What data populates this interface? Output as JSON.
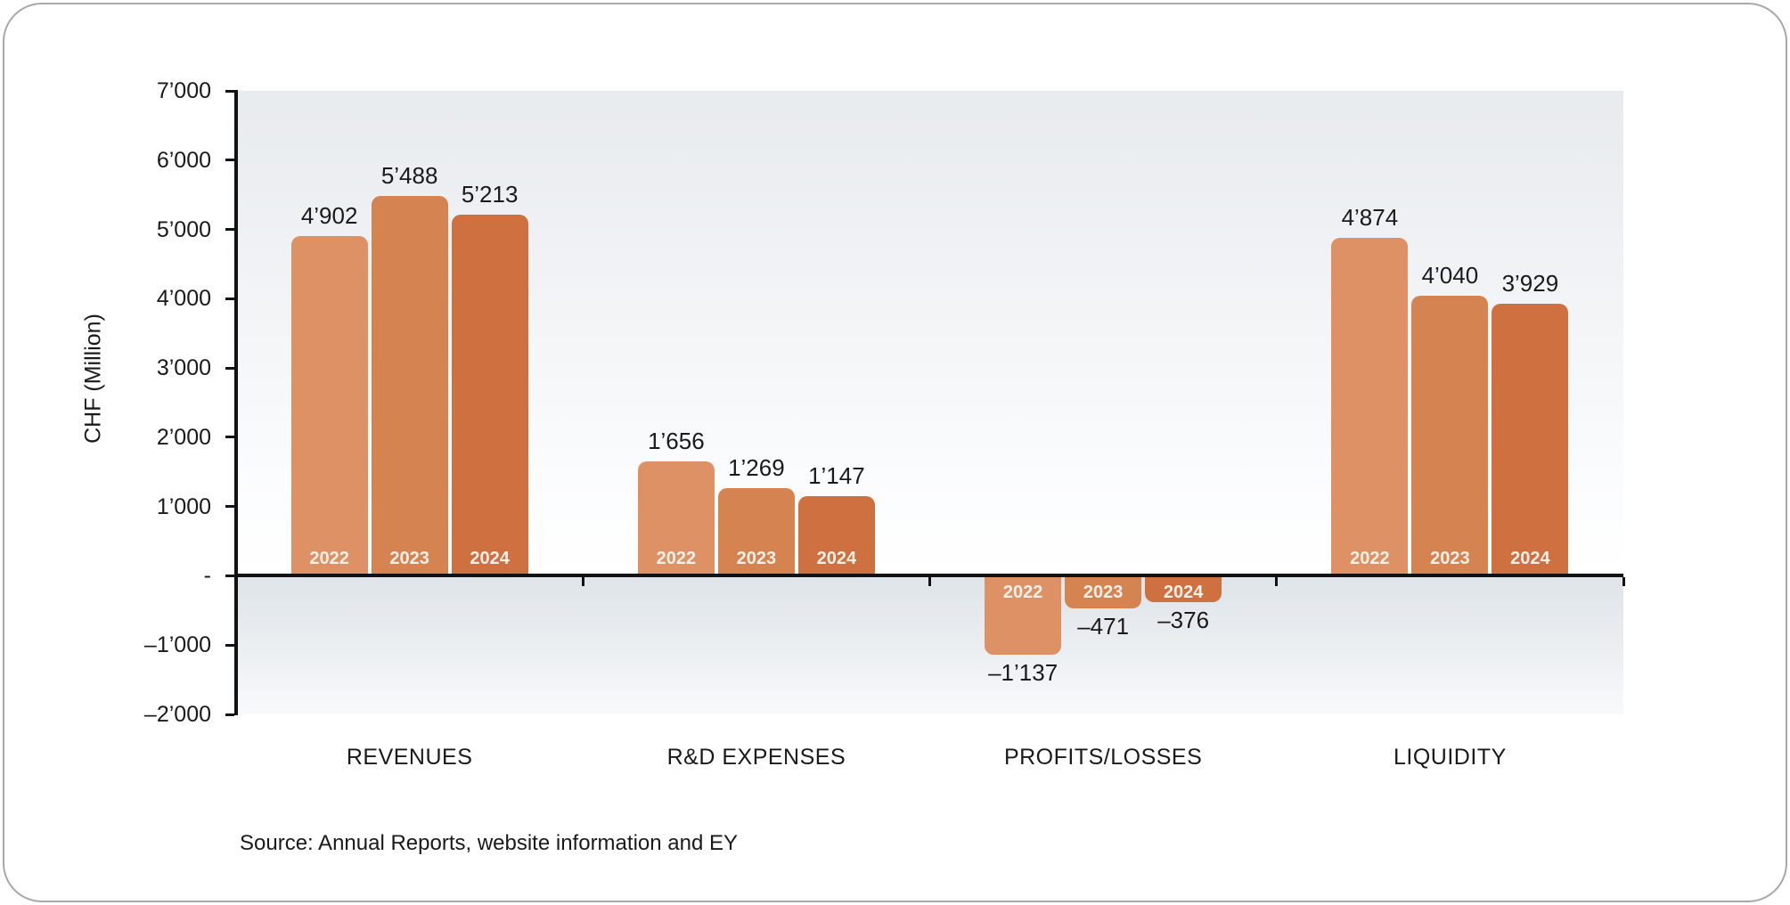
{
  "card": {
    "source_note": "Source: Annual Reports, website information and EY"
  },
  "style": {
    "axis_color": "#121212",
    "text_color": "#1a1a1a",
    "year_label_color": "#F7F0E9",
    "card_border_color": "#a8a8a8",
    "plot_bg_top": "#E8EBEE",
    "plot_bg_below_zero": "#DEE4E9",
    "bar_color_2022": "#DD9164",
    "bar_color_2023": "#D58351",
    "bar_color_2024": "#CF7040"
  },
  "chart_data": {
    "type": "bar",
    "title": "",
    "xlabel": "",
    "ylabel": "CHF (Million)",
    "ylim": [
      -2000,
      7000
    ],
    "grid": false,
    "legend_position": "none",
    "yticks": [
      {
        "value": 7000,
        "label": "7’000"
      },
      {
        "value": 6000,
        "label": "6’000"
      },
      {
        "value": 5000,
        "label": "5’000"
      },
      {
        "value": 4000,
        "label": "4’000"
      },
      {
        "value": 3000,
        "label": "3’000"
      },
      {
        "value": 2000,
        "label": "2’000"
      },
      {
        "value": 1000,
        "label": "1’000"
      },
      {
        "value": 0,
        "label": "-"
      },
      {
        "value": -1000,
        "label": "–1’000"
      },
      {
        "value": -2000,
        "label": "–2’000"
      }
    ],
    "categories": [
      "REVENUES",
      "R&D EXPENSES",
      "PROFITS/LOSSES",
      "LIQUIDITY"
    ],
    "series": [
      {
        "name": "2022",
        "color": "#DD9164",
        "values": [
          4902,
          1656,
          -1137,
          4874
        ],
        "value_labels": [
          "4’902",
          "1’656",
          "–1’137",
          "4’874"
        ]
      },
      {
        "name": "2023",
        "color": "#D58351",
        "values": [
          5488,
          1269,
          -471,
          4040
        ],
        "value_labels": [
          "5’488",
          "1’269",
          "–471",
          "4’040"
        ]
      },
      {
        "name": "2024",
        "color": "#CF7040",
        "values": [
          5213,
          1147,
          -376,
          3929
        ],
        "value_labels": [
          "5’213",
          "1’147",
          "–376",
          "3’929"
        ]
      }
    ]
  }
}
